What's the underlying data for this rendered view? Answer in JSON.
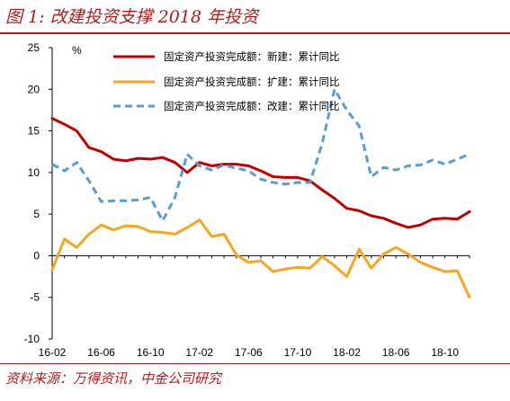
{
  "figure": {
    "title": "图 1: 改建投资支撑 2018 年投资",
    "source": "资料来源：万得资讯，中金公司研究"
  },
  "chart_data": {
    "type": "line",
    "ylabel": "%",
    "ylim": [
      -10,
      25
    ],
    "yticks": [
      -10,
      -5,
      0,
      5,
      10,
      15,
      20,
      25
    ],
    "xticks": [
      "16-02",
      "16-06",
      "16-10",
      "17-02",
      "17-06",
      "17-10",
      "18-02",
      "18-06",
      "18-10"
    ],
    "xtick_index": [
      0,
      4,
      8,
      12,
      16,
      20,
      24,
      28,
      32
    ],
    "x": [
      "16-02",
      "16-03",
      "16-04",
      "16-05",
      "16-06",
      "16-07",
      "16-08",
      "16-09",
      "16-10",
      "16-11",
      "16-12",
      "17-01",
      "17-02",
      "17-03",
      "17-04",
      "17-05",
      "17-06",
      "17-07",
      "17-08",
      "17-09",
      "17-10",
      "17-11",
      "17-12",
      "18-01",
      "18-02",
      "18-03",
      "18-04",
      "18-05",
      "18-06",
      "18-07",
      "18-08",
      "18-09",
      "18-10",
      "18-11",
      "18-12"
    ],
    "grid": false,
    "legend_position": "top",
    "series": [
      {
        "name": "固定资产投资完成额：新建：累计同比",
        "color": "#c00000",
        "style": "solid",
        "values": [
          16.5,
          15.8,
          15.0,
          13.0,
          12.5,
          11.6,
          11.4,
          11.7,
          11.6,
          11.8,
          11.2,
          10.0,
          11.2,
          10.8,
          11.0,
          11.0,
          10.8,
          10.2,
          9.5,
          9.4,
          9.4,
          9.0,
          7.9,
          6.9,
          5.7,
          5.4,
          4.8,
          4.5,
          3.9,
          3.4,
          3.7,
          4.4,
          4.5,
          4.4,
          5.3
        ]
      },
      {
        "name": "固定资产投资完成额：扩建：累计同比",
        "color": "#f5a623",
        "style": "solid",
        "values": [
          -1.7,
          2.0,
          1.0,
          2.6,
          3.7,
          3.1,
          3.6,
          3.5,
          2.9,
          2.8,
          2.6,
          3.4,
          4.3,
          2.3,
          2.6,
          0.1,
          -0.8,
          -0.6,
          -1.9,
          -1.6,
          -1.4,
          -1.5,
          -0.1,
          -1.2,
          -2.5,
          0.8,
          -1.5,
          0.2,
          1.0,
          0.2,
          -0.8,
          -1.4,
          -1.9,
          -1.8,
          -5.0
        ]
      },
      {
        "name": "固定资产投资完成额：改建：累计同比",
        "color": "#5b9bd5",
        "style": "dashed",
        "values": [
          11.0,
          10.2,
          11.2,
          9.0,
          6.5,
          6.6,
          6.6,
          6.7,
          7.0,
          4.2,
          7.0,
          12.2,
          10.8,
          10.3,
          10.9,
          10.5,
          10.2,
          9.2,
          8.8,
          8.6,
          8.8,
          8.8,
          13.5,
          20.0,
          17.5,
          15.6,
          9.5,
          10.6,
          10.3,
          10.8,
          10.9,
          11.5,
          11.0,
          11.6,
          12.2
        ]
      }
    ]
  }
}
